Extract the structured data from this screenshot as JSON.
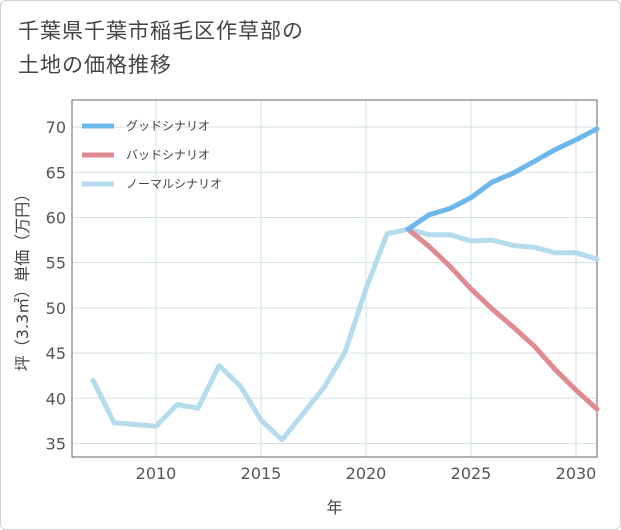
{
  "title_line1": "千葉県千葉市稲毛区作草部の",
  "title_line2": "土地の価格推移",
  "chart_data": {
    "type": "line",
    "title": "千葉県千葉市稲毛区作草部の土地の価格推移",
    "xlabel": "年",
    "ylabel": "坪（3.3㎡）単価（万円）",
    "xlim": [
      2006,
      2031
    ],
    "ylim": [
      33.5,
      73
    ],
    "xticks": [
      2010,
      2015,
      2020,
      2025,
      2030
    ],
    "yticks": [
      35,
      40,
      45,
      50,
      55,
      60,
      65,
      70
    ],
    "legend_position": "top-left",
    "grid": true,
    "series": [
      {
        "name": "グッドシナリオ",
        "color": "#6cb8ec",
        "x": [
          2022,
          2023,
          2024,
          2025,
          2026,
          2027,
          2028,
          2029,
          2030,
          2031
        ],
        "values": [
          58.7,
          60.3,
          61.0,
          62.2,
          63.9,
          64.9,
          66.2,
          67.5,
          68.6,
          69.8
        ]
      },
      {
        "name": "バッドシナリオ",
        "color": "#de8c92",
        "x": [
          2022,
          2023,
          2024,
          2025,
          2026,
          2027,
          2028,
          2029,
          2030,
          2031
        ],
        "values": [
          58.7,
          56.8,
          54.6,
          52.1,
          49.9,
          47.9,
          45.8,
          43.2,
          40.9,
          38.8
        ]
      },
      {
        "name": "ノーマルシナリオ",
        "color": "#b5dcec",
        "x": [
          2007,
          2008,
          2009,
          2010,
          2011,
          2012,
          2013,
          2014,
          2015,
          2016,
          2017,
          2018,
          2019,
          2020,
          2021,
          2022,
          2023,
          2024,
          2025,
          2026,
          2027,
          2028,
          2029,
          2030,
          2031
        ],
        "values": [
          42.0,
          37.3,
          37.1,
          36.9,
          39.3,
          38.9,
          43.6,
          41.4,
          37.6,
          35.4,
          38.3,
          41.2,
          45.1,
          52.1,
          58.2,
          58.7,
          58.1,
          58.1,
          57.4,
          57.5,
          56.9,
          56.7,
          56.1,
          56.1,
          55.4
        ]
      }
    ]
  }
}
